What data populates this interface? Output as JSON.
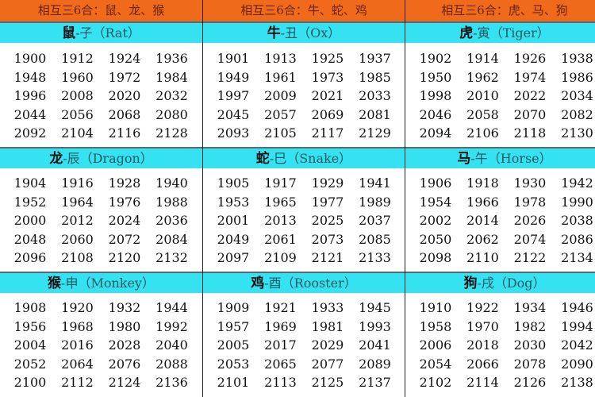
{
  "columns": [
    {
      "compat": "相互三6合：鼠、龙、猴",
      "groups": [
        {
          "animal": "鼠",
          "label": "-子（Rat）",
          "years": [
            1900,
            1912,
            1924,
            1936,
            1948,
            1960,
            1972,
            1984,
            1996,
            2008,
            2020,
            2032,
            2044,
            2056,
            2068,
            2080,
            2092,
            2104,
            2116,
            2128
          ]
        },
        {
          "animal": "龙",
          "label": "-辰（Dragon）",
          "years": [
            1904,
            1916,
            1928,
            1940,
            1952,
            1964,
            1976,
            1988,
            2000,
            2012,
            2024,
            2036,
            2048,
            2060,
            2072,
            2084,
            2096,
            2108,
            2120,
            2132
          ]
        },
        {
          "animal": "猴",
          "label": "-申（Monkey）",
          "years": [
            1908,
            1920,
            1932,
            1944,
            1956,
            1968,
            1980,
            1992,
            2004,
            2016,
            2028,
            2040,
            2052,
            2064,
            2076,
            2088,
            2100,
            2112,
            2124,
            2136
          ]
        }
      ]
    },
    {
      "compat": "相互三6合：牛、蛇、鸡",
      "groups": [
        {
          "animal": "牛",
          "label": "-丑（Ox）",
          "years": [
            1901,
            1913,
            1925,
            1937,
            1949,
            1961,
            1973,
            1985,
            1997,
            2009,
            2021,
            2033,
            2045,
            2057,
            2069,
            2081,
            2093,
            2105,
            2117,
            2129
          ]
        },
        {
          "animal": "蛇",
          "label": "-巳（Snake）",
          "years": [
            1905,
            1917,
            1929,
            1941,
            1953,
            1965,
            1977,
            1989,
            2001,
            2013,
            2025,
            2037,
            2049,
            2061,
            2073,
            2085,
            2097,
            2109,
            2121,
            2133
          ]
        },
        {
          "animal": "鸡",
          "label": "-酉（Rooster）",
          "years": [
            1909,
            1921,
            1933,
            1945,
            1957,
            1969,
            1981,
            1993,
            2005,
            2017,
            2029,
            2041,
            2053,
            2065,
            2077,
            2089,
            2101,
            2113,
            2125,
            2137
          ]
        }
      ]
    },
    {
      "compat": "相互三6合：虎、马、狗",
      "groups": [
        {
          "animal": "虎",
          "label": "-寅（Tiger）",
          "years": [
            1902,
            1914,
            1926,
            1938,
            1950,
            1962,
            1974,
            1986,
            1998,
            2010,
            2022,
            2034,
            2046,
            2058,
            2070,
            2082,
            2094,
            2106,
            2118,
            2130
          ]
        },
        {
          "animal": "马",
          "label": "-午（Horse）",
          "years": [
            1906,
            1918,
            1930,
            1942,
            1954,
            1966,
            1978,
            1990,
            2002,
            2014,
            2026,
            2038,
            2050,
            2062,
            2074,
            2086,
            2098,
            2110,
            2122,
            2134
          ]
        },
        {
          "animal": "狗",
          "label": "-戌（Dog）",
          "years": [
            1910,
            1922,
            1934,
            1946,
            1958,
            1970,
            1982,
            1994,
            2006,
            2018,
            2030,
            2042,
            2054,
            2066,
            2078,
            2090,
            2102,
            2114,
            2126,
            2138
          ]
        }
      ]
    }
  ]
}
